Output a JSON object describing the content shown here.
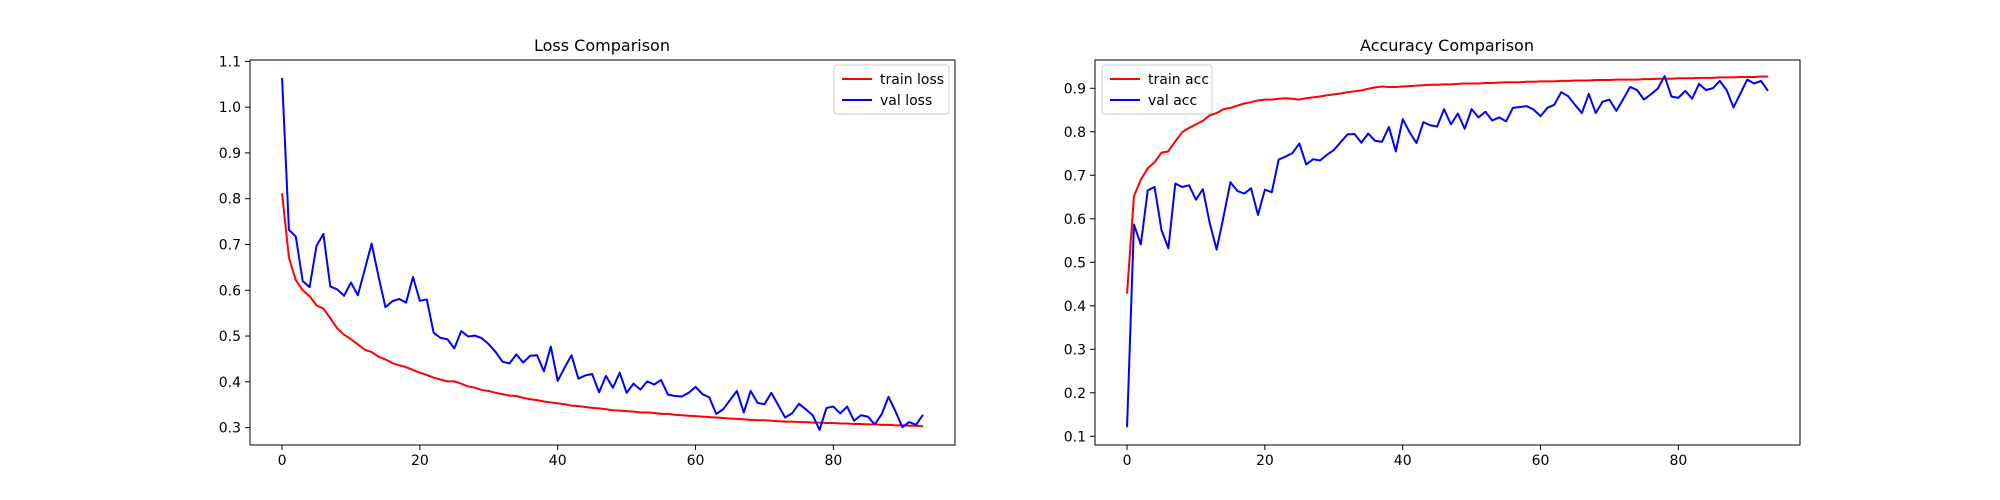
{
  "chart_data": [
    {
      "type": "line",
      "title": "Loss Comparison",
      "xlabel": "",
      "ylabel": "",
      "xlim": [
        -4.65,
        97.65
      ],
      "ylim": [
        0.262,
        1.103
      ],
      "xticks": [
        0,
        20,
        40,
        60,
        80
      ],
      "yticks": [
        0.3,
        0.4,
        0.5,
        0.6,
        0.7,
        0.8,
        0.9,
        1.0,
        1.1
      ],
      "grid": false,
      "legend_position": "top-right",
      "x": [
        0,
        1,
        2,
        3,
        4,
        5,
        6,
        7,
        8,
        9,
        10,
        11,
        12,
        13,
        14,
        15,
        16,
        17,
        18,
        19,
        20,
        21,
        22,
        23,
        24,
        25,
        26,
        27,
        28,
        29,
        30,
        31,
        32,
        33,
        34,
        35,
        36,
        37,
        38,
        39,
        40,
        41,
        42,
        43,
        44,
        45,
        46,
        47,
        48,
        49,
        50,
        51,
        52,
        53,
        54,
        55,
        56,
        57,
        58,
        59,
        60,
        61,
        62,
        63,
        64,
        65,
        66,
        67,
        68,
        69,
        70,
        71,
        72,
        73,
        74,
        75,
        76,
        77,
        78,
        79,
        80,
        81,
        82,
        83,
        84,
        85,
        86,
        87,
        88,
        89,
        90,
        91,
        92,
        93
      ],
      "series": [
        {
          "name": "train loss",
          "color": "#ff0000",
          "values": [
            0.812,
            0.671,
            0.622,
            0.6,
            0.587,
            0.567,
            0.56,
            0.539,
            0.517,
            0.503,
            0.493,
            0.482,
            0.47,
            0.465,
            0.455,
            0.449,
            0.441,
            0.436,
            0.432,
            0.426,
            0.42,
            0.415,
            0.409,
            0.405,
            0.401,
            0.401,
            0.396,
            0.39,
            0.387,
            0.382,
            0.38,
            0.376,
            0.373,
            0.37,
            0.369,
            0.365,
            0.362,
            0.36,
            0.357,
            0.355,
            0.353,
            0.351,
            0.348,
            0.347,
            0.345,
            0.343,
            0.342,
            0.34,
            0.338,
            0.337,
            0.336,
            0.335,
            0.333,
            0.333,
            0.332,
            0.33,
            0.33,
            0.328,
            0.327,
            0.326,
            0.325,
            0.324,
            0.323,
            0.322,
            0.321,
            0.32,
            0.319,
            0.318,
            0.317,
            0.316,
            0.316,
            0.315,
            0.314,
            0.313,
            0.313,
            0.312,
            0.312,
            0.311,
            0.311,
            0.31,
            0.31,
            0.309,
            0.309,
            0.308,
            0.308,
            0.307,
            0.307,
            0.306,
            0.306,
            0.305,
            0.305,
            0.304,
            0.304,
            0.303
          ]
        },
        {
          "name": "val loss",
          "color": "#0000ff",
          "values": [
            1.064,
            0.732,
            0.717,
            0.62,
            0.607,
            0.697,
            0.723,
            0.608,
            0.602,
            0.588,
            0.617,
            0.589,
            0.645,
            0.702,
            0.63,
            0.563,
            0.576,
            0.581,
            0.573,
            0.629,
            0.577,
            0.58,
            0.507,
            0.496,
            0.493,
            0.473,
            0.511,
            0.499,
            0.501,
            0.495,
            0.482,
            0.465,
            0.444,
            0.44,
            0.46,
            0.442,
            0.457,
            0.458,
            0.423,
            0.477,
            0.402,
            0.431,
            0.458,
            0.407,
            0.414,
            0.417,
            0.377,
            0.413,
            0.387,
            0.42,
            0.376,
            0.396,
            0.383,
            0.401,
            0.394,
            0.404,
            0.372,
            0.369,
            0.368,
            0.376,
            0.389,
            0.373,
            0.366,
            0.33,
            0.34,
            0.36,
            0.38,
            0.333,
            0.38,
            0.354,
            0.351,
            0.376,
            0.349,
            0.322,
            0.331,
            0.352,
            0.34,
            0.327,
            0.295,
            0.343,
            0.346,
            0.331,
            0.346,
            0.315,
            0.327,
            0.324,
            0.307,
            0.329,
            0.367,
            0.336,
            0.301,
            0.312,
            0.306,
            0.328
          ]
        }
      ]
    },
    {
      "type": "line",
      "title": "Accuracy Comparison",
      "xlabel": "",
      "ylabel": "",
      "xlim": [
        -4.65,
        97.65
      ],
      "ylim": [
        0.08,
        0.965
      ],
      "xticks": [
        0,
        20,
        40,
        60,
        80
      ],
      "yticks": [
        0.1,
        0.2,
        0.3,
        0.4,
        0.5,
        0.6,
        0.7,
        0.8,
        0.9
      ],
      "grid": false,
      "legend_position": "top-left",
      "x": [
        0,
        1,
        2,
        3,
        4,
        5,
        6,
        7,
        8,
        9,
        10,
        11,
        12,
        13,
        14,
        15,
        16,
        17,
        18,
        19,
        20,
        21,
        22,
        23,
        24,
        25,
        26,
        27,
        28,
        29,
        30,
        31,
        32,
        33,
        34,
        35,
        36,
        37,
        38,
        39,
        40,
        41,
        42,
        43,
        44,
        45,
        46,
        47,
        48,
        49,
        50,
        51,
        52,
        53,
        54,
        55,
        56,
        57,
        58,
        59,
        60,
        61,
        62,
        63,
        64,
        65,
        66,
        67,
        68,
        69,
        70,
        71,
        72,
        73,
        74,
        75,
        76,
        77,
        78,
        79,
        80,
        81,
        82,
        83,
        84,
        85,
        86,
        87,
        88,
        89,
        90,
        91,
        92,
        93
      ],
      "series": [
        {
          "name": "train acc",
          "color": "#ff0000",
          "values": [
            0.428,
            0.652,
            0.69,
            0.716,
            0.73,
            0.752,
            0.755,
            0.778,
            0.799,
            0.809,
            0.817,
            0.825,
            0.838,
            0.843,
            0.852,
            0.855,
            0.86,
            0.865,
            0.868,
            0.872,
            0.874,
            0.874,
            0.876,
            0.877,
            0.876,
            0.874,
            0.877,
            0.879,
            0.881,
            0.884,
            0.886,
            0.888,
            0.891,
            0.893,
            0.895,
            0.899,
            0.902,
            0.904,
            0.903,
            0.903,
            0.904,
            0.905,
            0.906,
            0.907,
            0.908,
            0.908,
            0.909,
            0.909,
            0.91,
            0.911,
            0.911,
            0.911,
            0.912,
            0.912,
            0.913,
            0.914,
            0.914,
            0.914,
            0.915,
            0.915,
            0.916,
            0.916,
            0.916,
            0.917,
            0.917,
            0.918,
            0.918,
            0.918,
            0.919,
            0.919,
            0.919,
            0.92,
            0.92,
            0.92,
            0.92,
            0.921,
            0.921,
            0.922,
            0.922,
            0.922,
            0.923,
            0.923,
            0.923,
            0.924,
            0.924,
            0.924,
            0.925,
            0.925,
            0.925,
            0.926,
            0.926,
            0.926,
            0.927,
            0.927
          ]
        },
        {
          "name": "val acc",
          "color": "#0000ff",
          "values": [
            0.121,
            0.587,
            0.541,
            0.665,
            0.673,
            0.574,
            0.532,
            0.681,
            0.673,
            0.677,
            0.644,
            0.668,
            0.59,
            0.529,
            0.605,
            0.684,
            0.664,
            0.658,
            0.67,
            0.609,
            0.667,
            0.661,
            0.736,
            0.743,
            0.751,
            0.773,
            0.725,
            0.737,
            0.734,
            0.747,
            0.758,
            0.776,
            0.794,
            0.795,
            0.775,
            0.796,
            0.779,
            0.777,
            0.811,
            0.755,
            0.829,
            0.799,
            0.774,
            0.822,
            0.815,
            0.812,
            0.852,
            0.817,
            0.842,
            0.807,
            0.852,
            0.833,
            0.846,
            0.826,
            0.833,
            0.824,
            0.855,
            0.857,
            0.859,
            0.851,
            0.836,
            0.855,
            0.862,
            0.891,
            0.882,
            0.862,
            0.843,
            0.887,
            0.843,
            0.869,
            0.874,
            0.848,
            0.875,
            0.903,
            0.896,
            0.874,
            0.886,
            0.899,
            0.928,
            0.881,
            0.878,
            0.894,
            0.876,
            0.91,
            0.896,
            0.9,
            0.917,
            0.896,
            0.856,
            0.888,
            0.92,
            0.911,
            0.917,
            0.894
          ]
        }
      ]
    }
  ]
}
